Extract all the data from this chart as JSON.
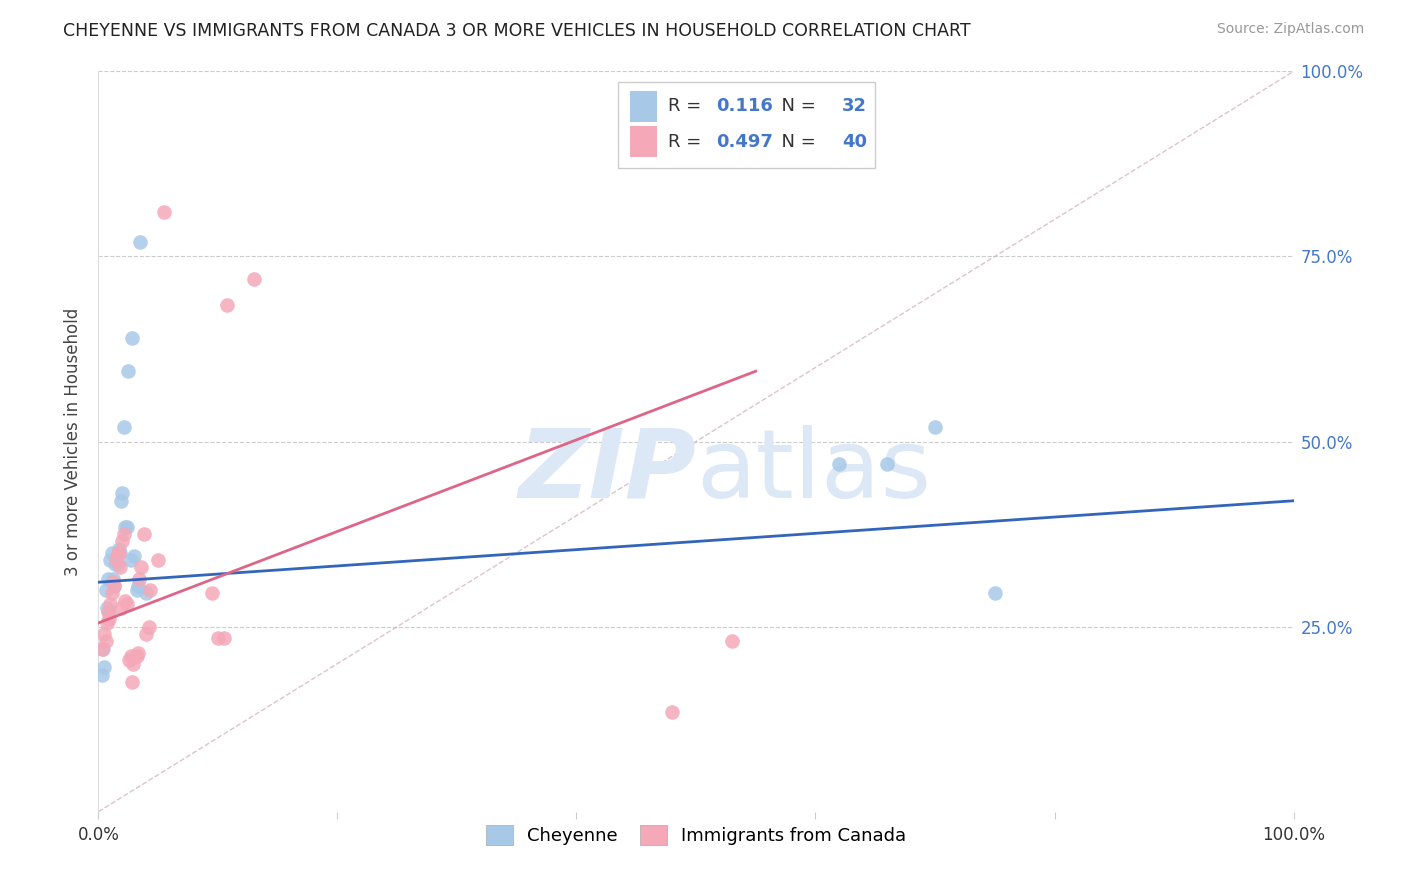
{
  "title": "CHEYENNE VS IMMIGRANTS FROM CANADA 3 OR MORE VEHICLES IN HOUSEHOLD CORRELATION CHART",
  "source": "Source: ZipAtlas.com",
  "ylabel": "3 or more Vehicles in Household",
  "xlim": [
    0,
    1
  ],
  "ylim": [
    0,
    1
  ],
  "yticks": [
    0.0,
    0.25,
    0.5,
    0.75,
    1.0
  ],
  "ytick_labels": [
    "",
    "25.0%",
    "50.0%",
    "75.0%",
    "100.0%"
  ],
  "legend_blue_r": "0.116",
  "legend_blue_n": "32",
  "legend_pink_r": "0.497",
  "legend_pink_n": "40",
  "legend_label_blue": "Cheyenne",
  "legend_label_pink": "Immigrants from Canada",
  "blue_color": "#a8c8e8",
  "pink_color": "#f4a8b8",
  "line_blue_color": "#3366bb",
  "line_pink_color": "#dd6688",
  "diagonal_color": "#ccaabb",
  "watermark_color": "#dce8f5",
  "blue_points_x": [
    0.003,
    0.004,
    0.005,
    0.006,
    0.007,
    0.008,
    0.009,
    0.01,
    0.011,
    0.012,
    0.013,
    0.014,
    0.016,
    0.017,
    0.018,
    0.019,
    0.02,
    0.021,
    0.022,
    0.024,
    0.025,
    0.027,
    0.028,
    0.03,
    0.032,
    0.033,
    0.035,
    0.04,
    0.62,
    0.66,
    0.7,
    0.75
  ],
  "blue_points_y": [
    0.185,
    0.22,
    0.195,
    0.3,
    0.275,
    0.315,
    0.27,
    0.34,
    0.35,
    0.315,
    0.305,
    0.335,
    0.335,
    0.355,
    0.35,
    0.42,
    0.43,
    0.52,
    0.385,
    0.385,
    0.595,
    0.34,
    0.64,
    0.345,
    0.3,
    0.305,
    0.77,
    0.295,
    0.47,
    0.47,
    0.52,
    0.295
  ],
  "pink_points_x": [
    0.003,
    0.005,
    0.006,
    0.007,
    0.008,
    0.009,
    0.01,
    0.011,
    0.012,
    0.013,
    0.015,
    0.016,
    0.017,
    0.018,
    0.019,
    0.02,
    0.021,
    0.022,
    0.024,
    0.026,
    0.027,
    0.028,
    0.029,
    0.032,
    0.033,
    0.034,
    0.036,
    0.038,
    0.04,
    0.042,
    0.043,
    0.05,
    0.055,
    0.095,
    0.1,
    0.105,
    0.108,
    0.13,
    0.48,
    0.53
  ],
  "pink_points_y": [
    0.22,
    0.24,
    0.23,
    0.255,
    0.27,
    0.26,
    0.28,
    0.295,
    0.31,
    0.305,
    0.34,
    0.35,
    0.35,
    0.33,
    0.275,
    0.365,
    0.375,
    0.285,
    0.28,
    0.205,
    0.21,
    0.175,
    0.2,
    0.21,
    0.215,
    0.315,
    0.33,
    0.375,
    0.24,
    0.25,
    0.3,
    0.34,
    0.81,
    0.295,
    0.235,
    0.235,
    0.685,
    0.72,
    0.135,
    0.23
  ],
  "blue_line_x": [
    0.0,
    1.0
  ],
  "blue_line_y": [
    0.31,
    0.42
  ],
  "pink_line_x": [
    0.0,
    0.55
  ],
  "pink_line_y": [
    0.255,
    0.595
  ],
  "diag_line_x": [
    0.0,
    1.0
  ],
  "diag_line_y": [
    0.0,
    1.0
  ]
}
